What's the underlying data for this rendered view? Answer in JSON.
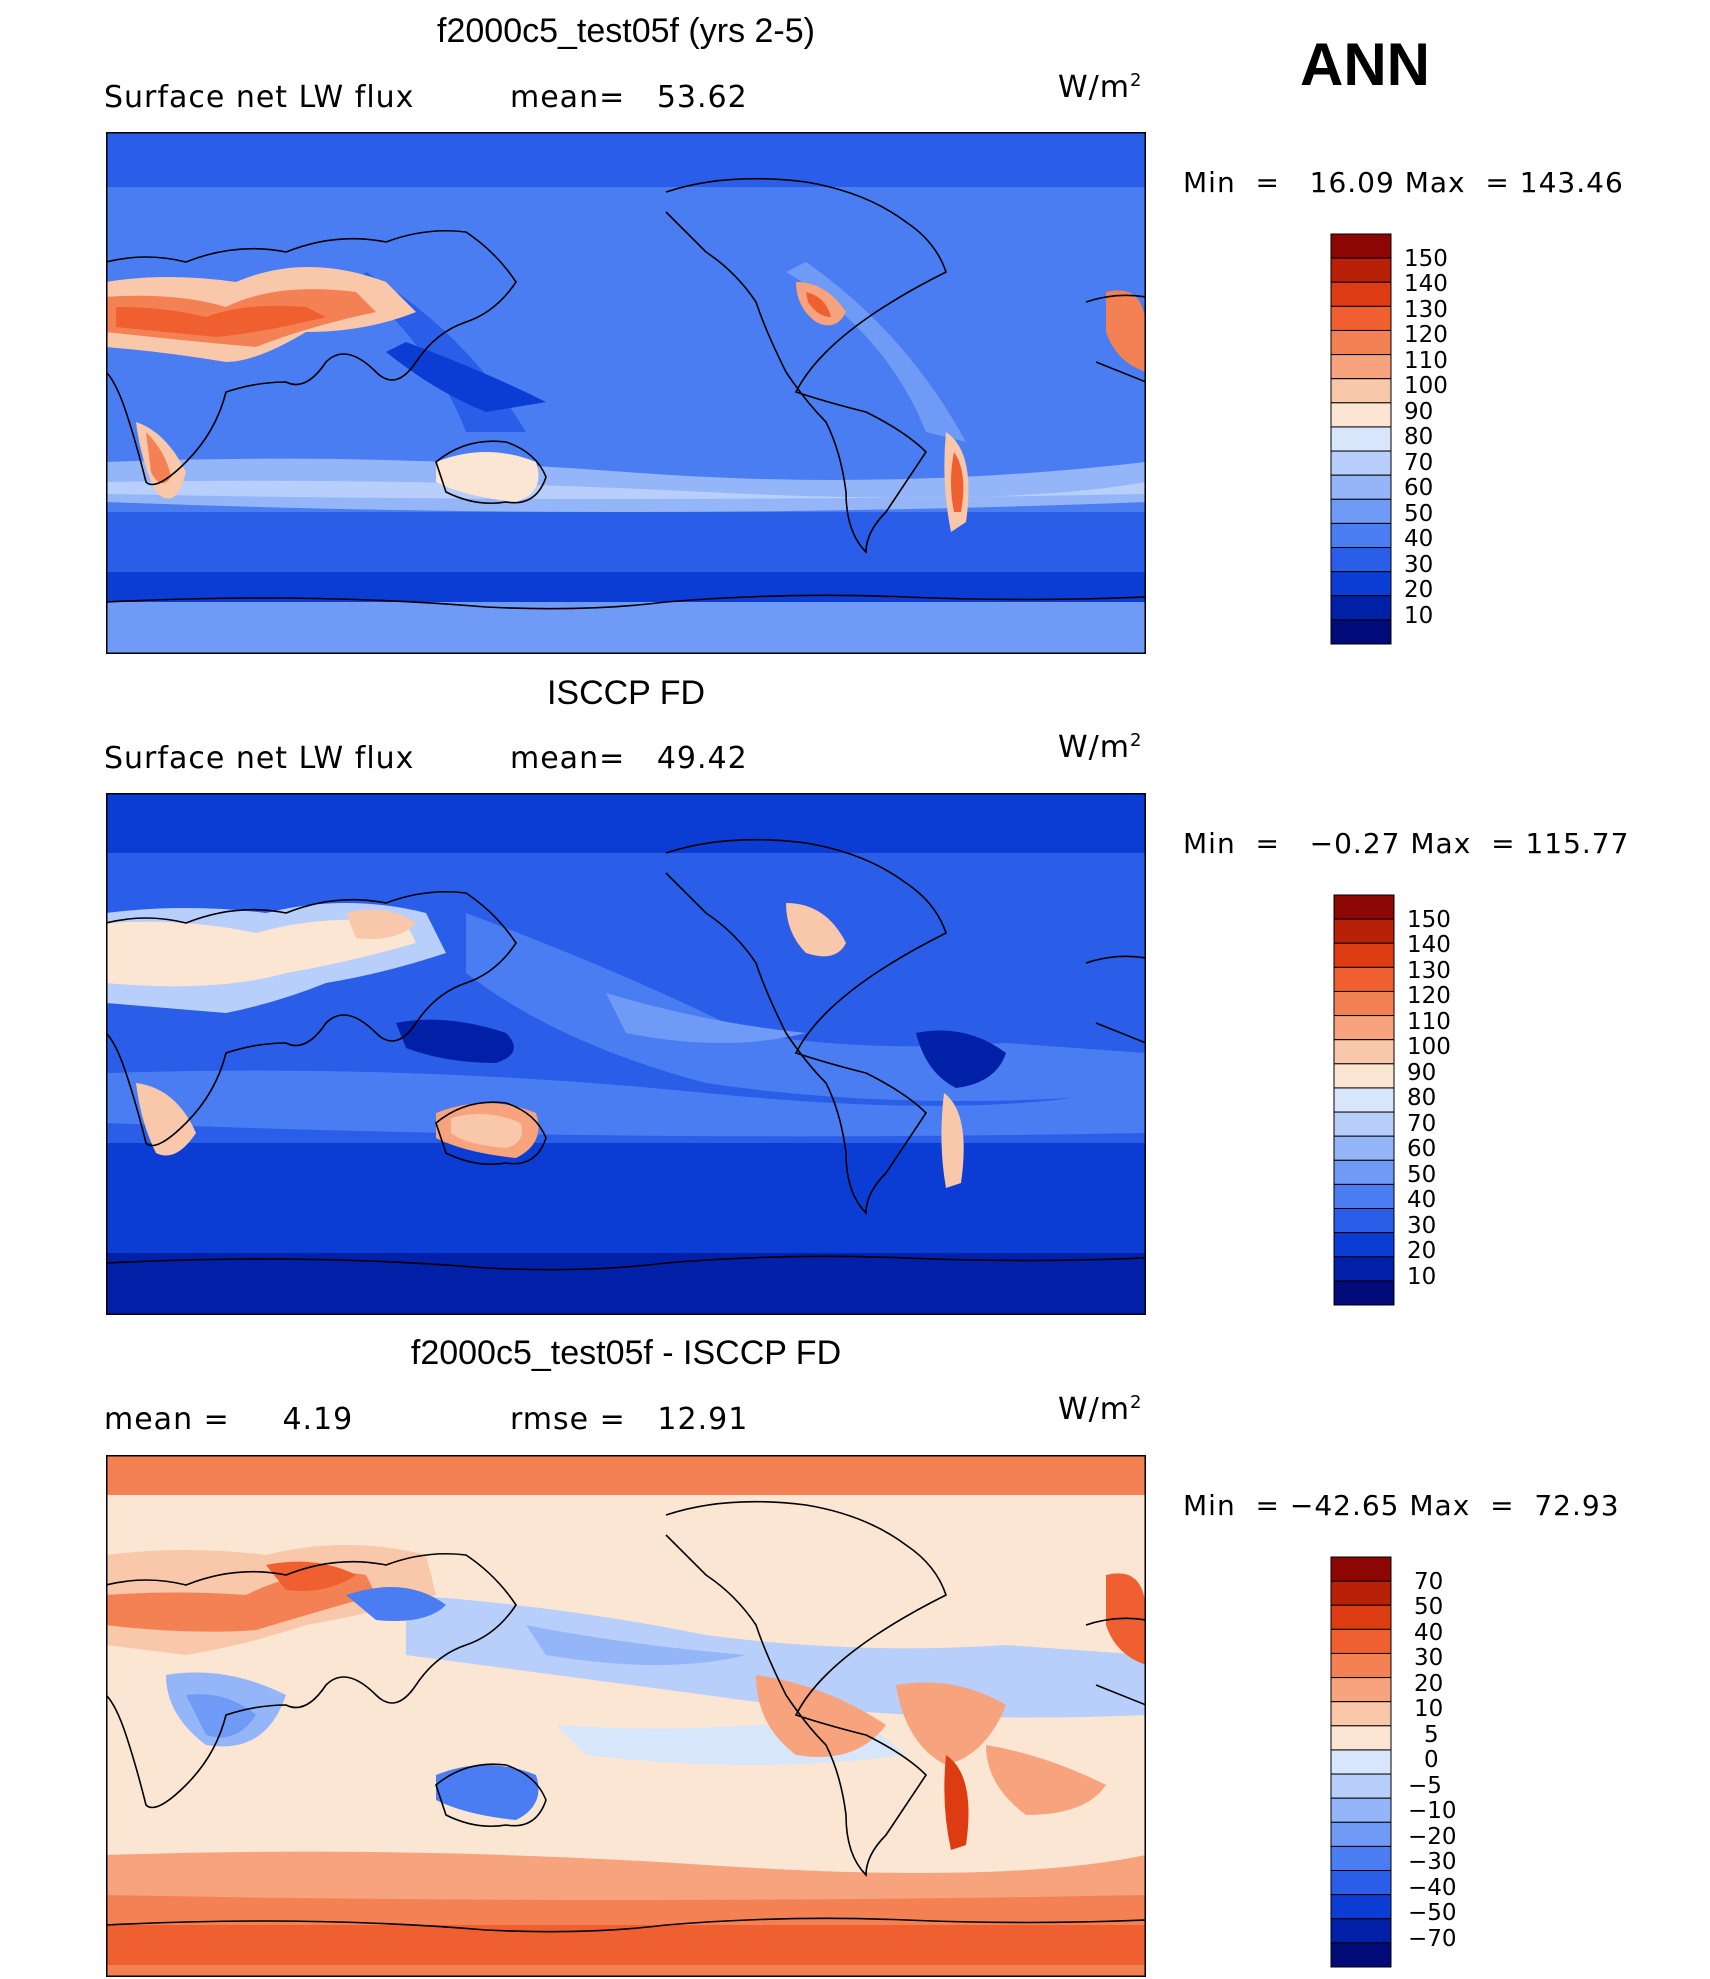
{
  "season": "ANN",
  "colors": {
    "main_scale": [
      "#000b7a",
      "#0020a8",
      "#0b3cd4",
      "#2a5ee8",
      "#4a7df2",
      "#6f9af6",
      "#94b6f8",
      "#b7cffa",
      "#d8e6fb",
      "#fbe5d3",
      "#f9c7a9",
      "#f7a37e",
      "#f48154",
      "#ef5f30",
      "#dd3b12",
      "#b92008",
      "#8c0603"
    ],
    "diff_scale": [
      "#000b7a",
      "#0020a8",
      "#0b3cd4",
      "#2a5ee8",
      "#4a7df2",
      "#6f9af6",
      "#94b6f8",
      "#b7cffa",
      "#d8e6fb",
      "#fbe5d3",
      "#f9c7a9",
      "#f7a37e",
      "#f48154",
      "#ef5f30",
      "#dd3b12",
      "#b92008",
      "#8c0603"
    ]
  },
  "panels": [
    {
      "title": "f2000c5_test05f (yrs 2-5)",
      "left_text": "Surface net LW flux",
      "mid_label": "mean=",
      "mid_value": "53.62",
      "units_base": "W/m",
      "units_exp": "2",
      "min_label": "Min  =",
      "min_value": "16.09",
      "max_label": "Max  =",
      "max_value": "143.46",
      "levels": [
        "150",
        "140",
        "130",
        "120",
        "110",
        "100",
        "90",
        "80",
        "70",
        "60",
        "50",
        "40",
        "30",
        "20",
        "10"
      ]
    },
    {
      "title": "ISCCP FD",
      "left_text": "Surface net LW flux",
      "mid_label": "mean=",
      "mid_value": "49.42",
      "units_base": "W/m",
      "units_exp": "2",
      "min_label": "Min  =",
      "min_value": "−0.27",
      "max_label": "Max  =",
      "max_value": "115.77",
      "levels": [
        "150",
        "140",
        "130",
        "120",
        "110",
        "100",
        "90",
        "80",
        "70",
        "60",
        "50",
        "40",
        "30",
        "20",
        "10"
      ]
    },
    {
      "title": "f2000c5_test05f - ISCCP FD",
      "left_label": "mean  =",
      "left_value": "4.19",
      "mid_label": "rmse  =",
      "mid_value": "12.91",
      "units_base": "W/m",
      "units_exp": "2",
      "min_label": "Min  =",
      "min_value": "−42.65",
      "max_label": "Max  =",
      "max_value": "72.93",
      "levels": [
        "70",
        "50",
        "40",
        "30",
        "20",
        "10",
        "5",
        "0",
        "−5",
        "−10",
        "−20",
        "−30",
        "−40",
        "−50",
        "−70"
      ]
    }
  ]
}
